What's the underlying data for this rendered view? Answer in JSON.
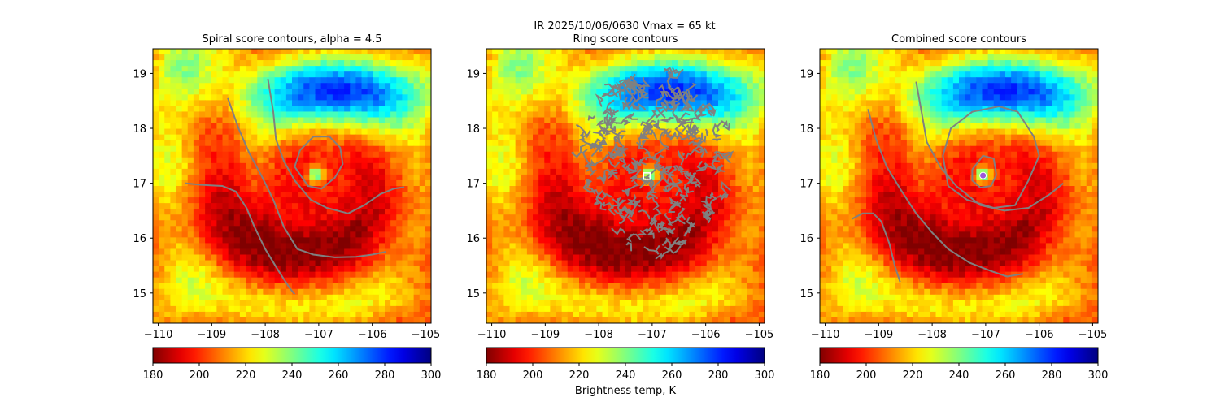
{
  "figure": {
    "suptitle_line1": "IR  2025/10/06/0630    Vmax = 65 kt",
    "colorbar_label": "Brightness temp, K",
    "colors": {
      "contour": "#808080",
      "white_marker": "#ffffff",
      "center_marker": "#9b59d9"
    },
    "colormap": "jet",
    "colormap_range": [
      180,
      300
    ]
  },
  "chart_data": [
    {
      "type": "heatmap",
      "title": "Spiral score contours, alpha =  4.5",
      "xlim": [
        -110.1,
        -104.9
      ],
      "ylim": [
        14.45,
        19.45
      ],
      "xticks": [
        "-110",
        "-109",
        "-108",
        "-107",
        "-106",
        "-105"
      ],
      "xtick_values": [
        -110,
        -109,
        -108,
        -107,
        -106,
        -105
      ],
      "yticks": [
        "15",
        "16",
        "17",
        "18",
        "19"
      ],
      "ytick_values": [
        15,
        16,
        17,
        18,
        19
      ],
      "colorbar_ticks": [
        "180",
        "200",
        "220",
        "240",
        "260",
        "280",
        "300"
      ],
      "colorbar_values": [
        180,
        200,
        220,
        240,
        260,
        280,
        300
      ],
      "contours": [
        [
          [
            -108.7,
            18.55
          ],
          [
            -108.5,
            18.0
          ],
          [
            -108.3,
            17.55
          ],
          [
            -108.05,
            17.1
          ],
          [
            -107.85,
            16.7
          ],
          [
            -107.65,
            16.2
          ],
          [
            -107.4,
            15.8
          ],
          [
            -107.1,
            15.7
          ],
          [
            -106.7,
            15.65
          ],
          [
            -106.3,
            15.66
          ],
          [
            -106.0,
            15.7
          ],
          [
            -105.75,
            15.75
          ]
        ],
        [
          [
            -109.5,
            17.0
          ],
          [
            -109.2,
            16.97
          ],
          [
            -108.8,
            16.95
          ],
          [
            -108.55,
            16.85
          ],
          [
            -108.35,
            16.55
          ],
          [
            -108.2,
            16.2
          ],
          [
            -108.0,
            15.8
          ],
          [
            -107.75,
            15.4
          ],
          [
            -107.55,
            15.1
          ],
          [
            -107.45,
            14.98
          ]
        ],
        [
          [
            -107.95,
            18.9
          ],
          [
            -107.85,
            18.3
          ],
          [
            -107.8,
            17.8
          ],
          [
            -107.65,
            17.4
          ],
          [
            -107.45,
            17.05
          ],
          [
            -107.15,
            16.7
          ],
          [
            -106.85,
            16.55
          ],
          [
            -106.45,
            16.45
          ],
          [
            -106.15,
            16.6
          ],
          [
            -105.85,
            16.8
          ],
          [
            -105.6,
            16.9
          ],
          [
            -105.4,
            16.93
          ]
        ],
        [
          [
            -107.35,
            17.6
          ],
          [
            -107.1,
            17.85
          ],
          [
            -106.8,
            17.85
          ],
          [
            -106.6,
            17.65
          ],
          [
            -106.55,
            17.35
          ],
          [
            -106.7,
            17.1
          ],
          [
            -106.95,
            16.9
          ],
          [
            -107.2,
            16.95
          ],
          [
            -107.45,
            17.3
          ],
          [
            -107.35,
            17.6
          ]
        ]
      ],
      "markers": []
    },
    {
      "type": "heatmap",
      "title": "Ring score contours",
      "xlim": [
        -110.1,
        -104.9
      ],
      "ylim": [
        14.45,
        19.45
      ],
      "xticks": [
        "-110",
        "-109",
        "-108",
        "-107",
        "-106",
        "-105"
      ],
      "xtick_values": [
        -110,
        -109,
        -108,
        -107,
        -106,
        -105
      ],
      "yticks": [
        "15",
        "16",
        "17",
        "18",
        "19"
      ],
      "ytick_values": [
        15,
        16,
        17,
        18,
        19
      ],
      "colorbar_ticks": [
        "180",
        "200",
        "220",
        "240",
        "260",
        "280",
        "300"
      ],
      "colorbar_values": [
        180,
        200,
        220,
        240,
        260,
        280,
        300
      ],
      "contours": [],
      "ring_blob": {
        "lon_min": -108.3,
        "lon_max": -105.6,
        "lat_min": 15.8,
        "lat_max": 19.1
      },
      "markers": [
        {
          "lon": -107.1,
          "lat": 17.13,
          "shape": "square"
        }
      ]
    },
    {
      "type": "heatmap",
      "title": "Combined score contours",
      "xlim": [
        -110.1,
        -104.9
      ],
      "ylim": [
        14.45,
        19.45
      ],
      "xticks": [
        "-110",
        "-109",
        "-108",
        "-107",
        "-106",
        "-105"
      ],
      "xtick_values": [
        -110,
        -109,
        -108,
        -107,
        -106,
        -105
      ],
      "yticks": [
        "15",
        "16",
        "17",
        "18",
        "19"
      ],
      "ytick_values": [
        15,
        16,
        17,
        18,
        19
      ],
      "colorbar_ticks": [
        "180",
        "200",
        "220",
        "240",
        "260",
        "280",
        "300"
      ],
      "colorbar_values": [
        180,
        200,
        220,
        240,
        260,
        280,
        300
      ],
      "contours": [
        [
          [
            -109.5,
            16.35
          ],
          [
            -109.3,
            16.45
          ],
          [
            -109.1,
            16.45
          ],
          [
            -108.95,
            16.3
          ],
          [
            -108.8,
            15.9
          ],
          [
            -108.7,
            15.5
          ],
          [
            -108.6,
            15.2
          ]
        ],
        [
          [
            -109.2,
            18.35
          ],
          [
            -109.05,
            17.8
          ],
          [
            -108.85,
            17.3
          ],
          [
            -108.6,
            16.9
          ],
          [
            -108.3,
            16.45
          ],
          [
            -108.0,
            16.1
          ],
          [
            -107.7,
            15.8
          ],
          [
            -107.3,
            15.55
          ],
          [
            -106.9,
            15.4
          ],
          [
            -106.6,
            15.3
          ],
          [
            -106.3,
            15.35
          ]
        ],
        [
          [
            -108.3,
            18.85
          ],
          [
            -108.2,
            18.3
          ],
          [
            -108.1,
            17.75
          ],
          [
            -107.85,
            17.3
          ],
          [
            -107.55,
            16.95
          ],
          [
            -107.1,
            16.6
          ],
          [
            -106.65,
            16.5
          ],
          [
            -106.2,
            16.55
          ],
          [
            -105.8,
            16.8
          ],
          [
            -105.55,
            17.0
          ]
        ],
        [
          [
            -106.1,
            17.85
          ],
          [
            -106.0,
            17.5
          ],
          [
            -106.2,
            17.05
          ],
          [
            -106.45,
            16.6
          ],
          [
            -106.85,
            16.55
          ],
          [
            -107.35,
            16.7
          ],
          [
            -107.7,
            16.95
          ],
          [
            -107.8,
            17.5
          ],
          [
            -107.65,
            18.0
          ],
          [
            -107.25,
            18.3
          ],
          [
            -106.75,
            18.4
          ],
          [
            -106.4,
            18.3
          ],
          [
            -106.1,
            17.85
          ]
        ],
        [
          [
            -107.25,
            17.25
          ],
          [
            -107.05,
            17.5
          ],
          [
            -106.85,
            17.45
          ],
          [
            -106.8,
            17.15
          ],
          [
            -106.9,
            16.95
          ],
          [
            -107.1,
            16.92
          ],
          [
            -107.25,
            17.05
          ],
          [
            -107.25,
            17.25
          ]
        ]
      ],
      "markers": [
        {
          "lon": -107.05,
          "lat": 17.14,
          "shape": "circle"
        }
      ]
    }
  ]
}
